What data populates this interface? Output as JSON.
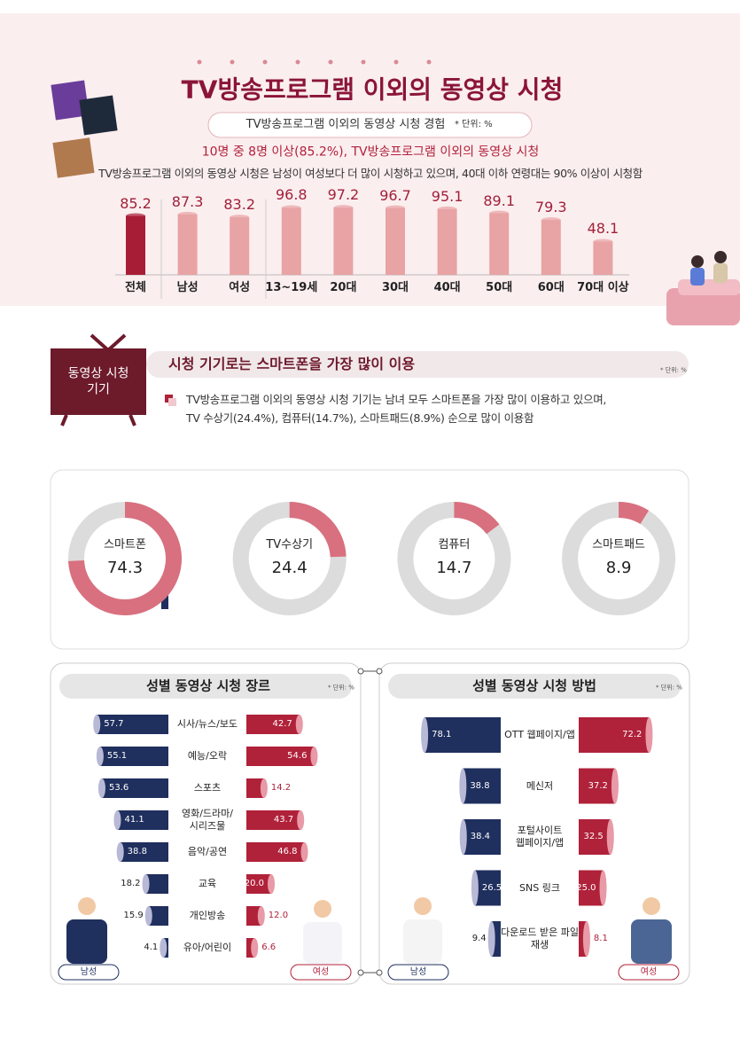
{
  "header": {
    "title": "TV방송프로그램 이외의 동영상 시청",
    "subtitle": "TV방송프로그램 이외의 동영상 시청 경험",
    "unit": "* 단위: %",
    "highlight": "10명 중 8명 이상(85.2%), TV방송프로그램 이외의 동영상 시청",
    "description": "TV방송프로그램 이외의 동영상 시청은 남성이 여성보다 더 많이 시청하고 있으며, 40대 이하 연령대는 90% 이상이 시청함"
  },
  "section": {
    "label": "동영상 시청 기기",
    "heading": "시청 기기로는 스마트폰을 가장 많이 이용",
    "unit": "* 단위: %",
    "text": "TV방송프로그램 이외의 동영상 시청 기기는 남녀 모두 스마트폰을 가장 많이 이용하고 있으며,\nTV 수상기(24.4%), 컴퓨터(14.7%), 스마트패드(8.9%) 순으로 많이 이용함"
  },
  "chart_data": [
    {
      "type": "bar",
      "categories": [
        "전체",
        "남성",
        "여성",
        "13~19세",
        "20대",
        "30대",
        "40대",
        "50대",
        "60대",
        "70대 이상"
      ],
      "values": [
        85.2,
        87.3,
        83.2,
        96.8,
        97.2,
        96.7,
        95.1,
        89.1,
        79.3,
        48.1
      ],
      "colors": [
        "#a81d36",
        "#e8a3a5",
        "#e8a3a5",
        "#e8a3a5",
        "#e8a3a5",
        "#e8a3a5",
        "#e8a3a5",
        "#e8a3a5",
        "#e8a3a5",
        "#e8a3a5"
      ]
    },
    {
      "type": "donut",
      "categories": [
        "스마트폰",
        "TV수상기",
        "컴퓨터",
        "스마트패드"
      ],
      "values": [
        74.3,
        24.4,
        14.7,
        8.9
      ],
      "color": "#d9707f",
      "track_color": "#dcdcdc"
    },
    {
      "type": "butterfly",
      "title": "성별 동영상 시청 장르",
      "unit": "* 단위: %",
      "categories": [
        "시사/뉴스/보도",
        "예능/오락",
        "스포츠",
        "영화/드라마/\n시리즈물",
        "음악/공연",
        "교육",
        "개인방송",
        "유아/어린이"
      ],
      "series": [
        {
          "name": "남성",
          "color": "#1f2f5e",
          "values": [
            57.7,
            55.1,
            53.6,
            41.1,
            38.8,
            18.2,
            15.9,
            4.1
          ]
        },
        {
          "name": "여성",
          "color": "#b0213a",
          "values": [
            42.7,
            54.6,
            14.2,
            43.7,
            46.8,
            20,
            12,
            6.6
          ],
          "value_labels": [
            "42.7",
            "54.6",
            "14.2",
            "43.7",
            "46.8",
            "20.0",
            "12.0",
            "6.6"
          ]
        }
      ]
    },
    {
      "type": "butterfly",
      "title": "성별 동영상 시청 방법",
      "unit": "* 단위: %",
      "categories": [
        "OTT 웹페이지/앱",
        "메신저",
        "포털사이트\n웹페이지/앱",
        "SNS 링크",
        "다운로드 받은 파일\n재생"
      ],
      "series": [
        {
          "name": "남성",
          "color": "#1f2f5e",
          "values": [
            78.1,
            38.8,
            38.4,
            26.5,
            9.4
          ]
        },
        {
          "name": "여성",
          "color": "#b0213a",
          "values": [
            72.2,
            37.2,
            32.5,
            25,
            8.1
          ],
          "value_labels": [
            "72.2",
            "37.2",
            "32.5",
            "25.0",
            "8.1"
          ]
        }
      ]
    }
  ]
}
